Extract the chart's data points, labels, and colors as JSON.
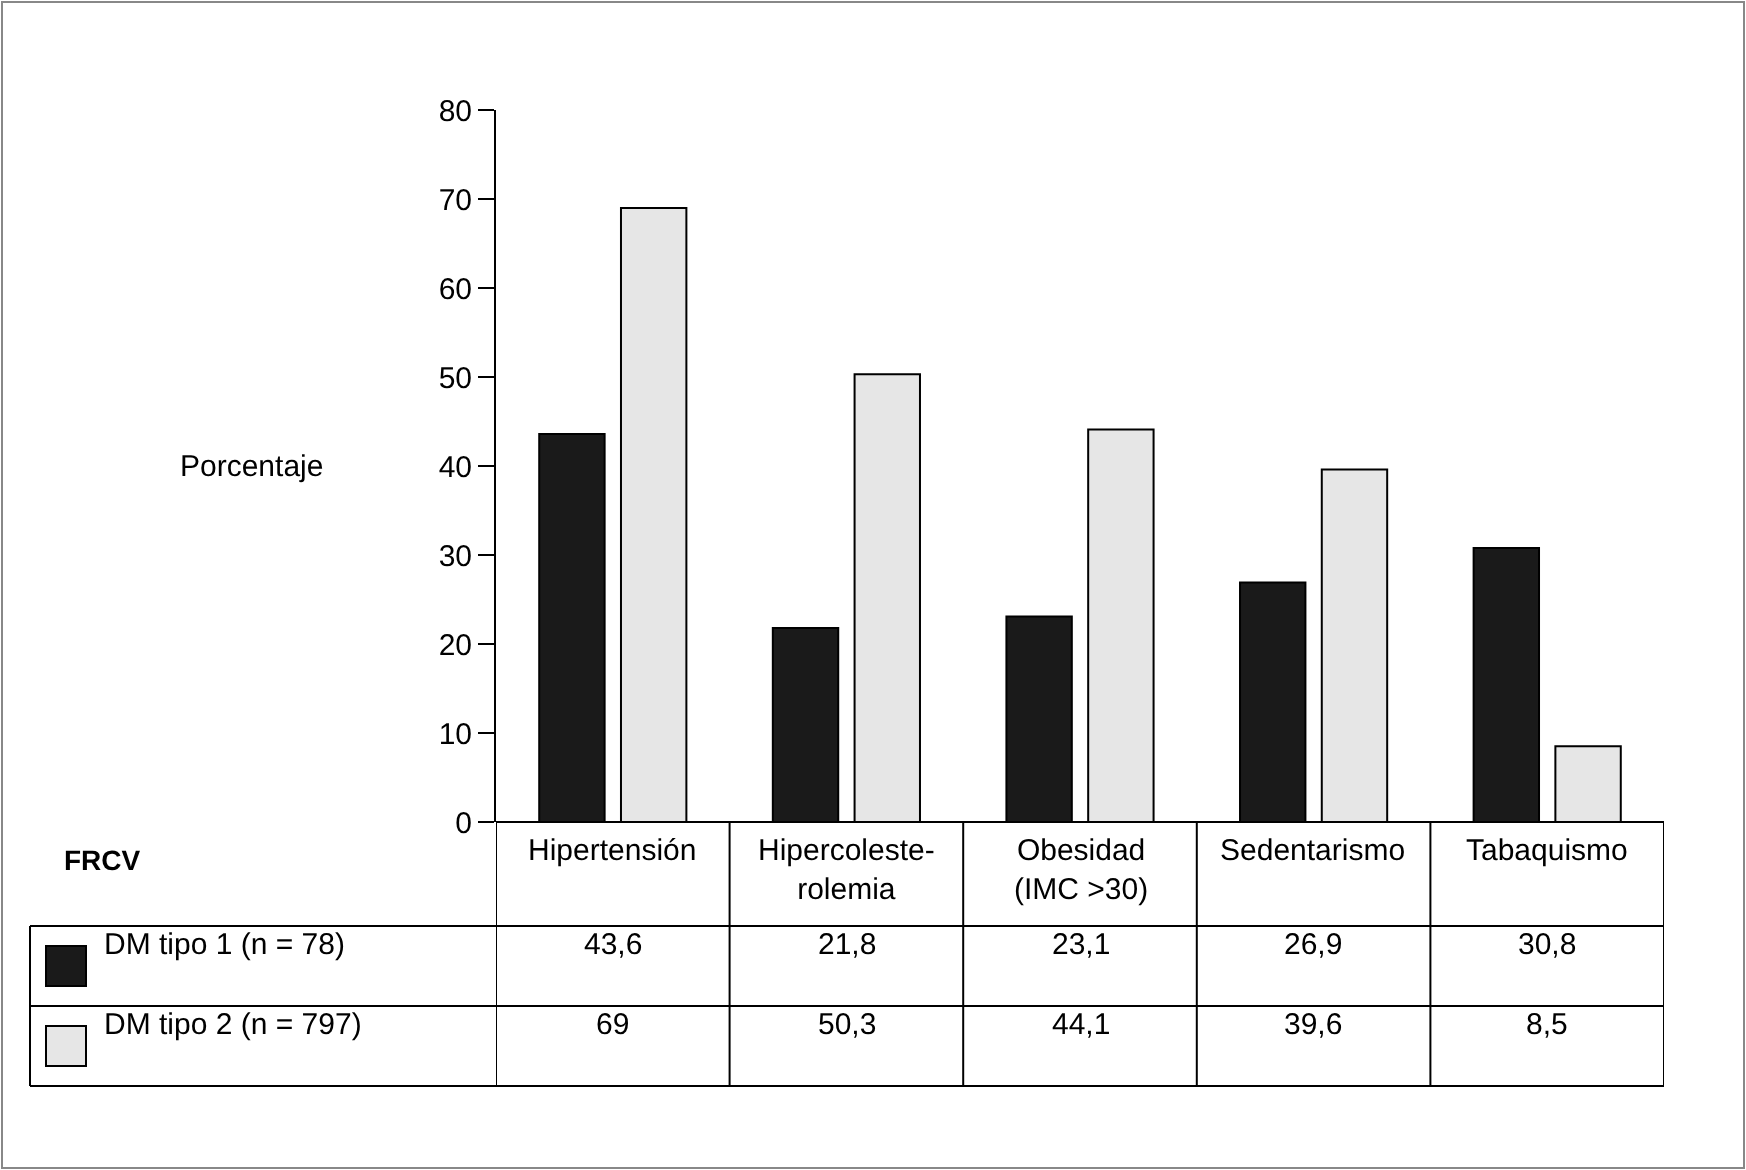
{
  "chart_data": {
    "type": "bar",
    "ylabel": "Porcentaje",
    "annotations": [
      "FRCV"
    ],
    "legend": "bottom left",
    "categories": [
      "Hipertensión",
      "Hipercoleste-\nrolemia",
      "Obesidad\n(IMC >30)",
      "Sedentarismo",
      "Tabaquismo"
    ],
    "series": [
      {
        "name": "DM tipo 1 (n = 78)",
        "color": "#1a1a1a",
        "values": [
          43.6,
          21.8,
          23.1,
          26.9,
          30.8
        ],
        "value_labels": [
          "43,6",
          "21,8",
          "23,1",
          "26,9",
          "30,8"
        ]
      },
      {
        "name": "DM tipo 2 (n = 797)",
        "color": "#e6e6e6",
        "values": [
          69,
          50.3,
          44.1,
          39.6,
          8.5
        ],
        "value_labels": [
          "69",
          "50,3",
          "44,1",
          "39,6",
          "8,5"
        ]
      }
    ],
    "ylim": [
      0,
      80
    ],
    "yticks": [
      0,
      10,
      20,
      30,
      40,
      50,
      60,
      70,
      80
    ]
  }
}
